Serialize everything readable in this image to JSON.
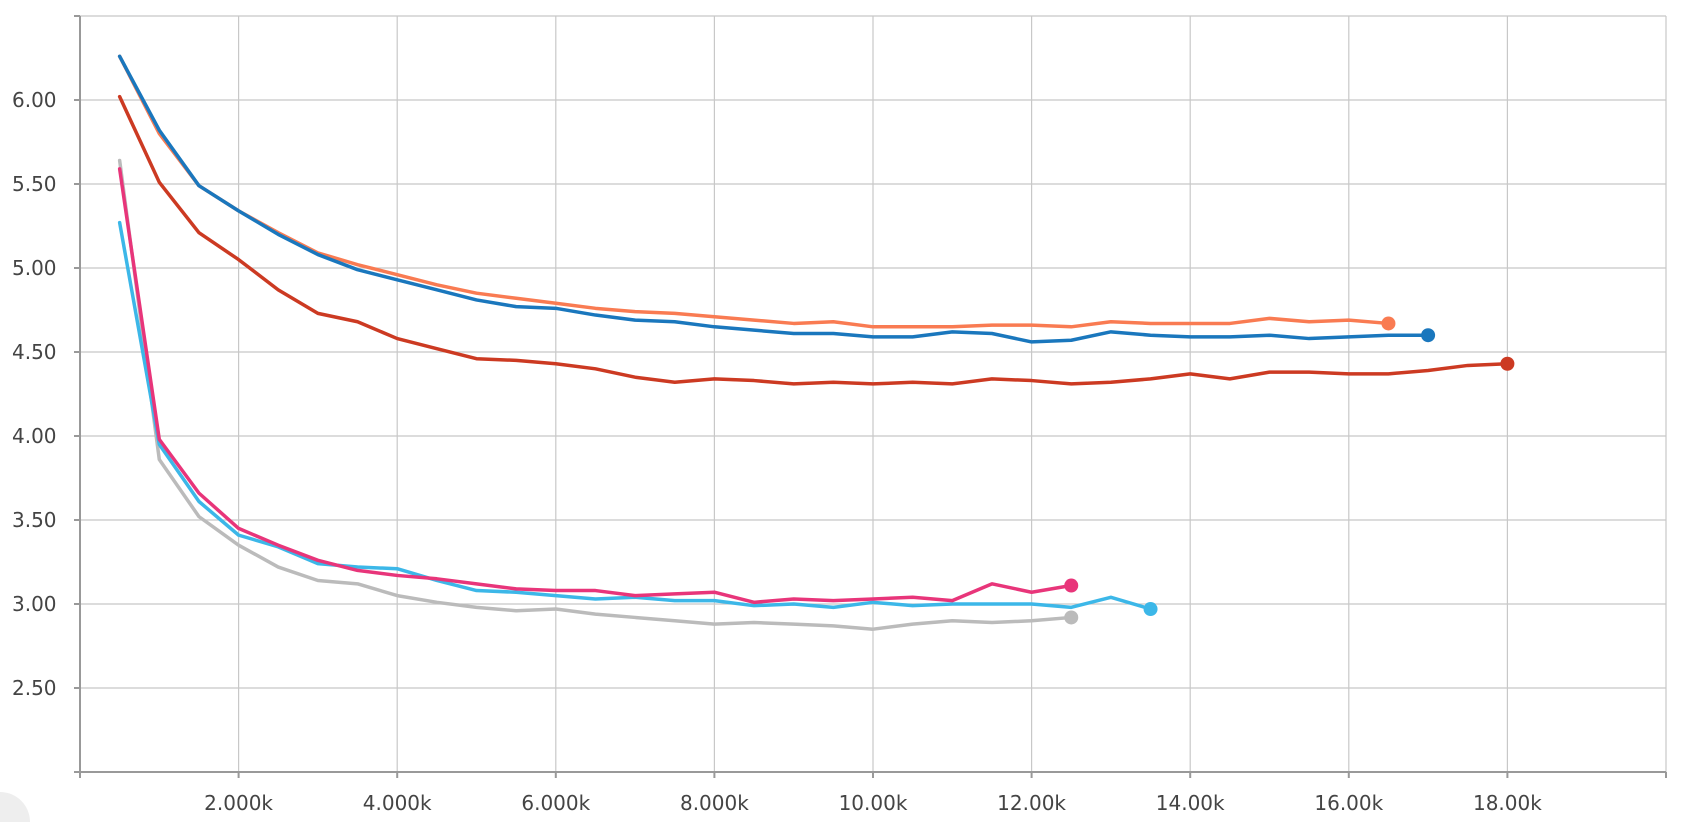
{
  "chart_data": {
    "type": "line",
    "title": "",
    "xlabel": "",
    "ylabel": "",
    "xlim": [
      0,
      20000
    ],
    "ylim": [
      2.0,
      6.5
    ],
    "grid": true,
    "legend": "none",
    "x_ticks": [
      {
        "value": 2000,
        "label": "2.000k"
      },
      {
        "value": 4000,
        "label": "4.000k"
      },
      {
        "value": 6000,
        "label": "6.000k"
      },
      {
        "value": 8000,
        "label": "8.000k"
      },
      {
        "value": 10000,
        "label": "10.00k"
      },
      {
        "value": 12000,
        "label": "12.00k"
      },
      {
        "value": 14000,
        "label": "14.00k"
      },
      {
        "value": 16000,
        "label": "16.00k"
      },
      {
        "value": 18000,
        "label": "18.00k"
      }
    ],
    "y_ticks": [
      {
        "value": 2.5,
        "label": "2.50"
      },
      {
        "value": 3.0,
        "label": "3.00"
      },
      {
        "value": 3.5,
        "label": "3.50"
      },
      {
        "value": 4.0,
        "label": "4.00"
      },
      {
        "value": 4.5,
        "label": "4.50"
      },
      {
        "value": 5.0,
        "label": "5.00"
      },
      {
        "value": 5.5,
        "label": "5.50"
      },
      {
        "value": 6.0,
        "label": "6.00"
      }
    ],
    "series": [
      {
        "color": "#f97b52",
        "points": [
          [
            500,
            6.26
          ],
          [
            1000,
            5.8
          ],
          [
            1500,
            5.49
          ],
          [
            2000,
            5.34
          ],
          [
            2500,
            5.21
          ],
          [
            3000,
            5.09
          ],
          [
            3500,
            5.02
          ],
          [
            4000,
            4.96
          ],
          [
            4500,
            4.9
          ],
          [
            5000,
            4.85
          ],
          [
            5500,
            4.82
          ],
          [
            6000,
            4.79
          ],
          [
            6500,
            4.76
          ],
          [
            7000,
            4.74
          ],
          [
            7500,
            4.73
          ],
          [
            8000,
            4.71
          ],
          [
            8500,
            4.69
          ],
          [
            9000,
            4.67
          ],
          [
            9500,
            4.68
          ],
          [
            10000,
            4.65
          ],
          [
            10500,
            4.65
          ],
          [
            11000,
            4.65
          ],
          [
            11500,
            4.66
          ],
          [
            12000,
            4.66
          ],
          [
            12500,
            4.65
          ],
          [
            13000,
            4.68
          ],
          [
            13500,
            4.67
          ],
          [
            14000,
            4.67
          ],
          [
            14500,
            4.67
          ],
          [
            15000,
            4.7
          ],
          [
            15500,
            4.68
          ],
          [
            16000,
            4.69
          ],
          [
            16500,
            4.67
          ]
        ]
      },
      {
        "color": "#1a77bd",
        "points": [
          [
            500,
            6.26
          ],
          [
            1000,
            5.82
          ],
          [
            1500,
            5.49
          ],
          [
            2000,
            5.34
          ],
          [
            2500,
            5.2
          ],
          [
            3000,
            5.08
          ],
          [
            3500,
            4.99
          ],
          [
            4000,
            4.93
          ],
          [
            4500,
            4.87
          ],
          [
            5000,
            4.81
          ],
          [
            5500,
            4.77
          ],
          [
            6000,
            4.76
          ],
          [
            6500,
            4.72
          ],
          [
            7000,
            4.69
          ],
          [
            7500,
            4.68
          ],
          [
            8000,
            4.65
          ],
          [
            8500,
            4.63
          ],
          [
            9000,
            4.61
          ],
          [
            9500,
            4.61
          ],
          [
            10000,
            4.59
          ],
          [
            10500,
            4.59
          ],
          [
            11000,
            4.62
          ],
          [
            11500,
            4.61
          ],
          [
            12000,
            4.56
          ],
          [
            12500,
            4.57
          ],
          [
            13000,
            4.62
          ],
          [
            13500,
            4.6
          ],
          [
            14000,
            4.59
          ],
          [
            14500,
            4.59
          ],
          [
            15000,
            4.6
          ],
          [
            15500,
            4.58
          ],
          [
            16000,
            4.59
          ],
          [
            16500,
            4.6
          ],
          [
            17000,
            4.6
          ]
        ]
      },
      {
        "color": "#cc3a22",
        "points": [
          [
            500,
            6.02
          ],
          [
            1000,
            5.51
          ],
          [
            1500,
            5.21
          ],
          [
            2000,
            5.05
          ],
          [
            2500,
            4.87
          ],
          [
            3000,
            4.73
          ],
          [
            3500,
            4.68
          ],
          [
            4000,
            4.58
          ],
          [
            4500,
            4.52
          ],
          [
            5000,
            4.46
          ],
          [
            5500,
            4.45
          ],
          [
            6000,
            4.43
          ],
          [
            6500,
            4.4
          ],
          [
            7000,
            4.35
          ],
          [
            7500,
            4.32
          ],
          [
            8000,
            4.34
          ],
          [
            8500,
            4.33
          ],
          [
            9000,
            4.31
          ],
          [
            9500,
            4.32
          ],
          [
            10000,
            4.31
          ],
          [
            10500,
            4.32
          ],
          [
            11000,
            4.31
          ],
          [
            11500,
            4.34
          ],
          [
            12000,
            4.33
          ],
          [
            12500,
            4.31
          ],
          [
            13000,
            4.32
          ],
          [
            13500,
            4.34
          ],
          [
            14000,
            4.37
          ],
          [
            14500,
            4.34
          ],
          [
            15000,
            4.38
          ],
          [
            15500,
            4.38
          ],
          [
            16000,
            4.37
          ],
          [
            16500,
            4.37
          ],
          [
            17000,
            4.39
          ],
          [
            17500,
            4.42
          ],
          [
            18000,
            4.43
          ]
        ]
      },
      {
        "color": "#bbbbbb",
        "points": [
          [
            500,
            5.64
          ],
          [
            1000,
            3.86
          ],
          [
            1500,
            3.52
          ],
          [
            2000,
            3.35
          ],
          [
            2500,
            3.22
          ],
          [
            3000,
            3.14
          ],
          [
            3500,
            3.12
          ],
          [
            4000,
            3.05
          ],
          [
            4500,
            3.01
          ],
          [
            5000,
            2.98
          ],
          [
            5500,
            2.96
          ],
          [
            6000,
            2.97
          ],
          [
            6500,
            2.94
          ],
          [
            7000,
            2.92
          ],
          [
            7500,
            2.9
          ],
          [
            8000,
            2.88
          ],
          [
            8500,
            2.89
          ],
          [
            9000,
            2.88
          ],
          [
            9500,
            2.87
          ],
          [
            10000,
            2.85
          ],
          [
            10500,
            2.88
          ],
          [
            11000,
            2.9
          ],
          [
            11500,
            2.89
          ],
          [
            12000,
            2.9
          ],
          [
            12500,
            2.92
          ]
        ]
      },
      {
        "color": "#3cb7e8",
        "points": [
          [
            500,
            5.27
          ],
          [
            1000,
            3.95
          ],
          [
            1500,
            3.61
          ],
          [
            2000,
            3.41
          ],
          [
            2500,
            3.34
          ],
          [
            3000,
            3.24
          ],
          [
            3500,
            3.22
          ],
          [
            4000,
            3.21
          ],
          [
            4500,
            3.14
          ],
          [
            5000,
            3.08
          ],
          [
            5500,
            3.07
          ],
          [
            6000,
            3.05
          ],
          [
            6500,
            3.03
          ],
          [
            7000,
            3.04
          ],
          [
            7500,
            3.02
          ],
          [
            8000,
            3.02
          ],
          [
            8500,
            2.99
          ],
          [
            9000,
            3.0
          ],
          [
            9500,
            2.98
          ],
          [
            10000,
            3.01
          ],
          [
            10500,
            2.99
          ],
          [
            11000,
            3.0
          ],
          [
            11500,
            3.0
          ],
          [
            12000,
            3.0
          ],
          [
            12500,
            2.98
          ],
          [
            13000,
            3.04
          ],
          [
            13500,
            2.97
          ]
        ]
      },
      {
        "color": "#e8357a",
        "points": [
          [
            500,
            5.59
          ],
          [
            1000,
            3.98
          ],
          [
            1500,
            3.66
          ],
          [
            2000,
            3.45
          ],
          [
            2500,
            3.35
          ],
          [
            3000,
            3.26
          ],
          [
            3500,
            3.2
          ],
          [
            4000,
            3.17
          ],
          [
            4500,
            3.15
          ],
          [
            5000,
            3.12
          ],
          [
            5500,
            3.09
          ],
          [
            6000,
            3.08
          ],
          [
            6500,
            3.08
          ],
          [
            7000,
            3.05
          ],
          [
            7500,
            3.06
          ],
          [
            8000,
            3.07
          ],
          [
            8500,
            3.01
          ],
          [
            9000,
            3.03
          ],
          [
            9500,
            3.02
          ],
          [
            10000,
            3.03
          ],
          [
            10500,
            3.04
          ],
          [
            11000,
            3.02
          ],
          [
            11500,
            3.12
          ],
          [
            12000,
            3.07
          ],
          [
            12500,
            3.11
          ]
        ]
      }
    ]
  }
}
